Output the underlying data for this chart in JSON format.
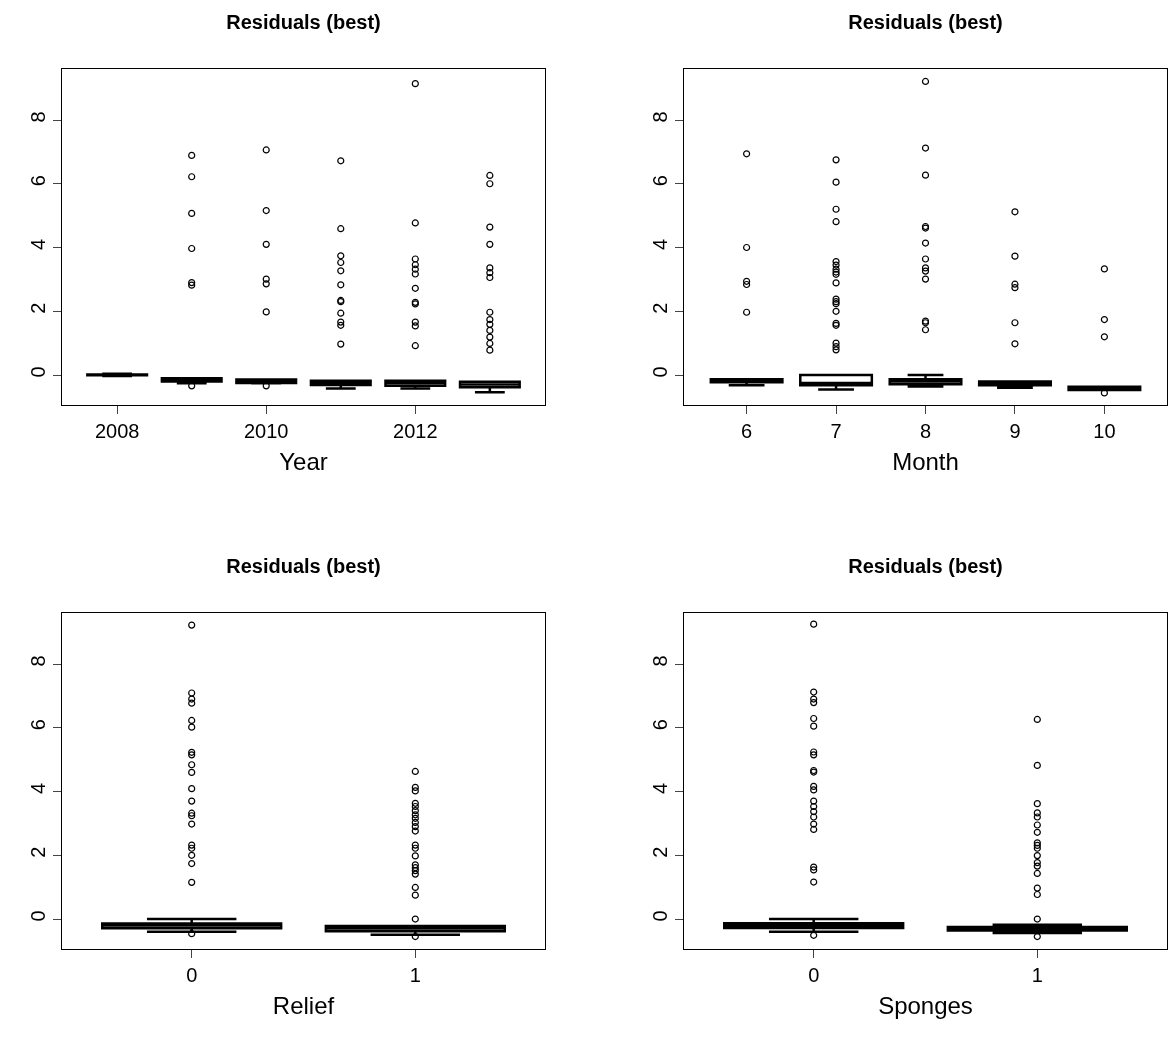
{
  "chart_data": [
    {
      "type": "box",
      "title": "Residuals (best)",
      "xlabel": "Year",
      "categories": [
        "2008",
        null,
        "2010",
        null,
        "2012",
        null
      ],
      "color": "#000000",
      "ylim": [
        -0.94,
        9.6
      ],
      "yticks": [
        0,
        2,
        4,
        6,
        8
      ],
      "grid": false,
      "boxes": [
        {
          "low": -0.03,
          "q1": -0.01,
          "median": 0.01,
          "q3": 0.02,
          "high": 0.04
        },
        {
          "low": -0.26,
          "q1": -0.2,
          "median": -0.13,
          "q3": -0.1,
          "high": -0.1,
          "outliers": [
            -0.34,
            6.89,
            6.22,
            5.07,
            3.97,
            2.9,
            2.82
          ]
        },
        {
          "low": -0.26,
          "q1": -0.25,
          "median": -0.18,
          "q3": -0.14,
          "high": -0.14,
          "outliers": [
            -0.34,
            7.06,
            5.16,
            4.1,
            3.01,
            2.86,
            1.98
          ]
        },
        {
          "low": -0.42,
          "q1": -0.31,
          "median": -0.25,
          "q3": -0.18,
          "high": -0.18,
          "outliers": [
            6.72,
            4.59,
            3.74,
            3.53,
            3.27,
            2.83,
            2.34,
            2.3,
            1.94,
            1.66,
            1.56,
            0.97
          ]
        },
        {
          "low": -0.42,
          "q1": -0.34,
          "median": -0.25,
          "q3": -0.18,
          "high": -0.18,
          "outliers": [
            9.14,
            4.77,
            3.64,
            3.46,
            3.32,
            3.17,
            2.72,
            2.28,
            2.23,
            1.66,
            1.54,
            0.92
          ]
        },
        {
          "low": -0.54,
          "q1": -0.38,
          "median": -0.3,
          "q3": -0.21,
          "high": -0.21,
          "outliers": [
            6.26,
            6.0,
            4.64,
            4.1,
            3.36,
            3.21,
            3.06,
            1.97,
            1.74,
            1.59,
            1.4,
            1.19,
            0.99,
            0.78
          ]
        }
      ]
    },
    {
      "type": "box",
      "title": "Residuals (best)",
      "xlabel": "Month",
      "categories": [
        "6",
        "7",
        "8",
        "9",
        "10"
      ],
      "color": "#000000",
      "ylim": [
        -0.94,
        9.6
      ],
      "yticks": [
        0,
        2,
        4,
        6,
        8
      ],
      "grid": false,
      "boxes": [
        {
          "low": -0.32,
          "q1": -0.23,
          "median": -0.18,
          "q3": -0.13,
          "high": -0.13,
          "outliers": [
            6.94,
            4.0,
            2.94,
            2.84,
            1.97
          ]
        },
        {
          "low": -0.45,
          "q1": -0.32,
          "median": -0.25,
          "q3": 0.0,
          "high": 0.0,
          "outliers": [
            6.75,
            6.05,
            5.2,
            4.81,
            3.56,
            3.45,
            3.32,
            3.23,
            3.16,
            2.89,
            2.38,
            2.3,
            2.24,
            2.0,
            1.62,
            1.56,
            1.0,
            0.89,
            0.79
          ]
        },
        {
          "low": -0.36,
          "q1": -0.29,
          "median": -0.2,
          "q3": -0.13,
          "high": 0.0,
          "outliers": [
            9.21,
            7.12,
            6.27,
            4.66,
            4.61,
            4.14,
            3.64,
            3.36,
            3.26,
            3.01,
            1.69,
            1.64,
            1.42
          ]
        },
        {
          "low": -0.4,
          "q1": -0.32,
          "median": -0.27,
          "q3": -0.2,
          "high": -0.2,
          "outliers": [
            5.12,
            3.73,
            2.85,
            2.74,
            1.64,
            0.98
          ]
        },
        {
          "low": -0.47,
          "q1": -0.47,
          "median": -0.42,
          "q3": -0.37,
          "high": -0.37,
          "outliers": [
            -0.56,
            3.33,
            1.74,
            1.2
          ]
        }
      ]
    },
    {
      "type": "box",
      "title": "Residuals (best)",
      "xlabel": "Relief",
      "categories": [
        "0",
        "1"
      ],
      "color": "#000000",
      "ylim": [
        -0.94,
        9.6
      ],
      "yticks": [
        0,
        2,
        4,
        6,
        8
      ],
      "grid": false,
      "boxes": [
        {
          "low": -0.4,
          "q1": -0.29,
          "median": -0.2,
          "q3": -0.14,
          "high": 0.0,
          "outliers": [
            -0.46,
            9.22,
            7.09,
            6.9,
            6.77,
            6.23,
            6.02,
            5.23,
            5.15,
            4.84,
            4.6,
            4.09,
            3.7,
            3.32,
            3.24,
            2.98,
            2.32,
            2.22,
            2.0,
            1.74,
            1.15
          ]
        },
        {
          "low": -0.49,
          "q1": -0.38,
          "median": -0.3,
          "q3": -0.22,
          "high": -0.22,
          "outliers": [
            -0.55,
            4.63,
            4.13,
            4.02,
            3.63,
            3.53,
            3.4,
            3.27,
            3.16,
            3.03,
            2.9,
            2.76,
            2.32,
            2.22,
            1.98,
            1.7,
            1.61,
            1.52,
            1.41,
            0.99,
            0.75,
            0.0
          ]
        }
      ]
    },
    {
      "type": "box",
      "title": "Residuals (best)",
      "xlabel": "Sponges",
      "categories": [
        "0",
        "1"
      ],
      "color": "#000000",
      "ylim": [
        -0.94,
        9.6
      ],
      "yticks": [
        0,
        2,
        4,
        6,
        8
      ],
      "grid": false,
      "boxes": [
        {
          "low": -0.4,
          "q1": -0.28,
          "median": -0.2,
          "q3": -0.13,
          "high": 0.0,
          "outliers": [
            -0.51,
            9.25,
            7.12,
            6.9,
            6.79,
            6.29,
            6.05,
            5.24,
            5.15,
            4.66,
            4.61,
            4.16,
            4.05,
            3.7,
            3.53,
            3.37,
            3.2,
            2.98,
            2.81,
            1.63,
            1.54,
            1.16
          ]
        },
        {
          "low": -0.44,
          "q1": -0.36,
          "median": -0.31,
          "q3": -0.25,
          "high": -0.18,
          "outliers": [
            -0.55,
            6.26,
            4.82,
            3.62,
            3.33,
            3.2,
            2.95,
            2.72,
            2.39,
            2.31,
            2.22,
            1.99,
            1.77,
            1.66,
            1.43,
            0.97,
            0.77,
            0.0
          ]
        }
      ]
    }
  ]
}
